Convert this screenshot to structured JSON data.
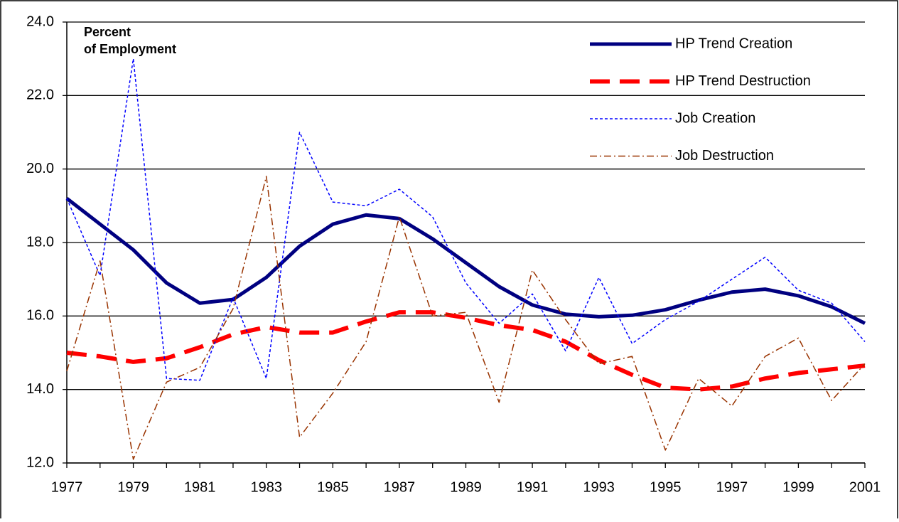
{
  "chart_data": {
    "type": "line",
    "ylabel_lines": [
      "Percent",
      "of Employment"
    ],
    "x": [
      1977,
      1978,
      1979,
      1980,
      1981,
      1982,
      1983,
      1984,
      1985,
      1986,
      1987,
      1988,
      1989,
      1990,
      1991,
      1992,
      1993,
      1994,
      1995,
      1996,
      1997,
      1998,
      1999,
      2000,
      2001
    ],
    "xlim": [
      1977,
      2001
    ],
    "xticks": [
      1977,
      1979,
      1981,
      1983,
      1985,
      1987,
      1989,
      1991,
      1993,
      1995,
      1997,
      1999,
      2001
    ],
    "ylim": [
      12,
      24
    ],
    "yticks": [
      {
        "value": 12,
        "label": "12.0"
      },
      {
        "value": 14,
        "label": "14.0"
      },
      {
        "value": 16,
        "label": "16.0"
      },
      {
        "value": 18,
        "label": "18.0"
      },
      {
        "value": 20,
        "label": "20.0"
      },
      {
        "value": 22,
        "label": "22.0"
      },
      {
        "value": 24,
        "label": "24.0"
      }
    ],
    "grid": true,
    "legend": "top-right",
    "series": [
      {
        "name": "HP Trend Creation",
        "color": "#000080",
        "width": 5,
        "dash": "none",
        "values": [
          19.2,
          18.5,
          17.8,
          16.9,
          16.35,
          16.45,
          17.05,
          17.9,
          18.5,
          18.75,
          18.65,
          18.1,
          17.45,
          16.8,
          16.3,
          16.05,
          15.98,
          16.02,
          16.17,
          16.43,
          16.65,
          16.73,
          16.55,
          16.25,
          15.8
        ]
      },
      {
        "name": "HP Trend Destruction",
        "color": "#ff0000",
        "width": 6,
        "dash": "28,14",
        "values": [
          15.0,
          14.9,
          14.75,
          14.85,
          15.15,
          15.5,
          15.7,
          15.55,
          15.55,
          15.85,
          16.1,
          16.1,
          15.95,
          15.75,
          15.62,
          15.3,
          14.8,
          14.4,
          14.05,
          14.0,
          14.08,
          14.3,
          14.45,
          14.55,
          14.65
        ]
      },
      {
        "name": "Job Creation",
        "color": "#0000ff",
        "width": 1.5,
        "dash": "4,3",
        "values": [
          19.2,
          17.1,
          23.0,
          14.3,
          14.25,
          16.5,
          14.3,
          21.0,
          19.1,
          19.0,
          19.45,
          18.7,
          16.9,
          15.8,
          16.6,
          15.05,
          17.05,
          15.25,
          15.9,
          16.4,
          17.0,
          17.6,
          16.7,
          16.35,
          15.3
        ]
      },
      {
        "name": "Job Destruction",
        "color": "#993300",
        "width": 1.5,
        "dash": "10,4,2,4",
        "values": [
          14.5,
          17.5,
          12.1,
          14.2,
          14.6,
          16.2,
          19.8,
          12.7,
          13.9,
          15.3,
          18.7,
          16.0,
          16.1,
          13.65,
          17.25,
          15.9,
          14.7,
          14.9,
          12.35,
          14.3,
          13.55,
          14.9,
          15.4,
          13.7,
          14.7
        ]
      }
    ]
  }
}
